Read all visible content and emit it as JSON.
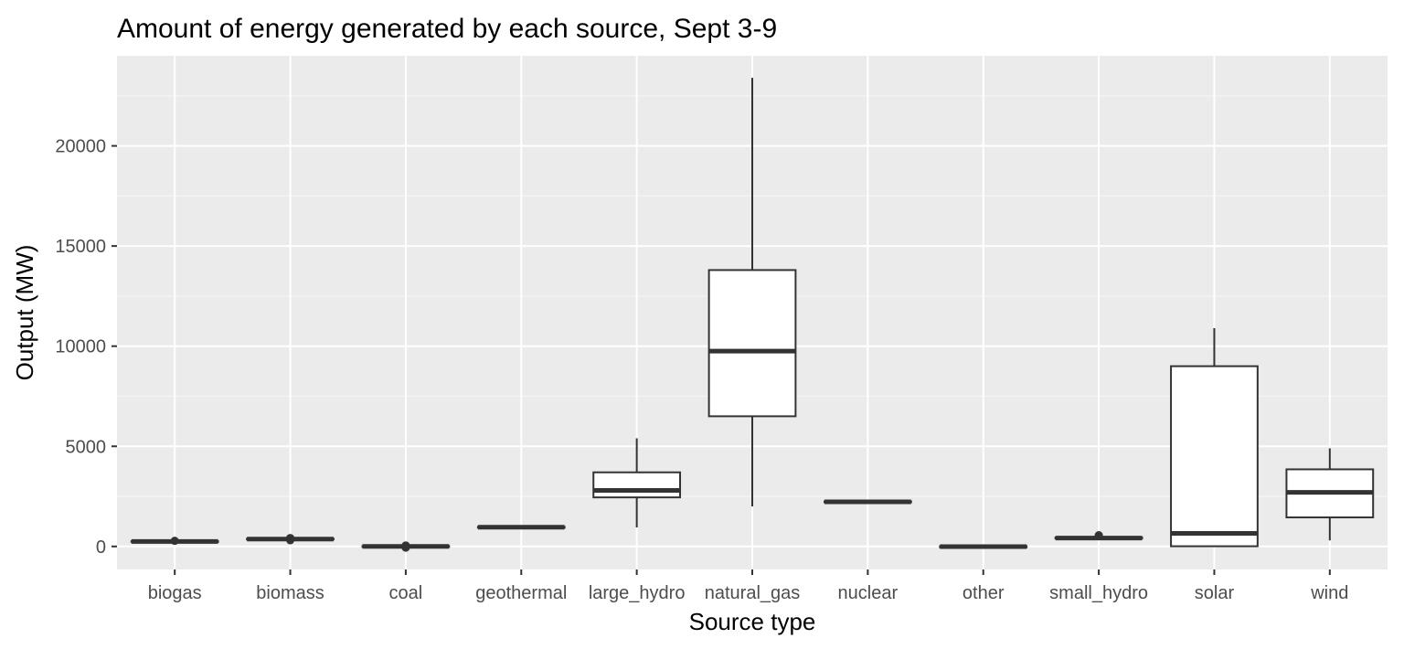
{
  "chart_data": {
    "type": "boxplot",
    "title": "Amount of energy generated by each source, Sept 3-9",
    "xlabel": "Source type",
    "ylabel": "Output (MW)",
    "ylim": [
      -1150,
      24500
    ],
    "yticks": [
      0,
      5000,
      10000,
      15000,
      20000
    ],
    "grid": true,
    "legend": "none",
    "colors": {
      "panel_background": "#EBEBEB",
      "grid_major": "#FFFFFF",
      "grid_minor": "#F5F5F5",
      "box_fill": "#FFFFFF",
      "box_stroke": "#333333",
      "tick_label": "#4D4D4D"
    },
    "categories": [
      "biogas",
      "biomass",
      "coal",
      "geothermal",
      "large_hydro",
      "natural_gas",
      "nuclear",
      "other",
      "small_hydro",
      "solar",
      "wind"
    ],
    "boxes": [
      {
        "category": "biogas",
        "min": 210,
        "q1": 230,
        "median": 245,
        "q3": 260,
        "max": 275,
        "outliers": [
          280
        ]
      },
      {
        "category": "biomass",
        "min": 320,
        "q1": 350,
        "median": 370,
        "q3": 385,
        "max": 400,
        "outliers": [
          310,
          420
        ]
      },
      {
        "category": "coal",
        "min": -40,
        "q1": -20,
        "median": 0,
        "q3": 15,
        "max": 30,
        "outliers": [
          50,
          -60
        ]
      },
      {
        "category": "geothermal",
        "min": 920,
        "q1": 940,
        "median": 960,
        "q3": 975,
        "max": 990,
        "outliers": []
      },
      {
        "category": "large_hydro",
        "min": 950,
        "q1": 2450,
        "median": 2800,
        "q3": 3700,
        "max": 5400,
        "outliers": []
      },
      {
        "category": "natural_gas",
        "min": 2000,
        "q1": 6500,
        "median": 9750,
        "q3": 13800,
        "max": 23400,
        "outliers": []
      },
      {
        "category": "nuclear",
        "min": 2190,
        "q1": 2210,
        "median": 2230,
        "q3": 2250,
        "max": 2260,
        "outliers": []
      },
      {
        "category": "other",
        "min": -80,
        "q1": -40,
        "median": -10,
        "q3": 10,
        "max": 20,
        "outliers": []
      },
      {
        "category": "small_hydro",
        "min": 370,
        "q1": 400,
        "median": 420,
        "q3": 445,
        "max": 480,
        "outliers": [
          560,
          520
        ]
      },
      {
        "category": "solar",
        "min": 0,
        "q1": 10,
        "median": 650,
        "q3": 9000,
        "max": 10900,
        "outliers": []
      },
      {
        "category": "wind",
        "min": 300,
        "q1": 1450,
        "median": 2700,
        "q3": 3850,
        "max": 4900,
        "outliers": []
      }
    ]
  }
}
